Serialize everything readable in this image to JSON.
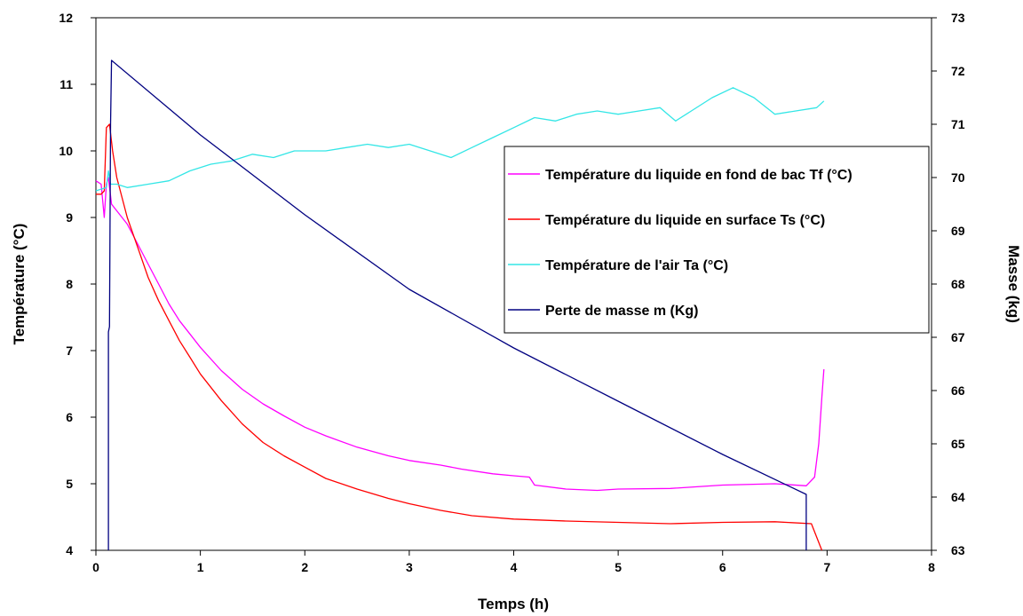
{
  "chart_data": {
    "type": "line",
    "title": "",
    "xlabel": "Temps (h)",
    "ylabel": "Température (°C)",
    "y2label": "Masse (kg)",
    "xlim": [
      0,
      8
    ],
    "ylim": [
      4,
      12
    ],
    "y2lim": [
      63,
      73
    ],
    "xticks": [
      "0",
      "1",
      "2",
      "3",
      "4",
      "5",
      "6",
      "7",
      "8"
    ],
    "yticks": [
      "4",
      "5",
      "6",
      "7",
      "8",
      "9",
      "10",
      "11",
      "12"
    ],
    "y2ticks": [
      "63",
      "64",
      "65",
      "66",
      "67",
      "68",
      "69",
      "70",
      "71",
      "72",
      "73"
    ],
    "grid": false,
    "legend_position": "right",
    "series": [
      {
        "name": "Température du liquide en fond de bac Tf (°C)",
        "color": "#ff00ff",
        "axis": "left",
        "x": [
          0,
          0.05,
          0.08,
          0.1,
          0.12,
          0.15,
          0.2,
          0.3,
          0.4,
          0.5,
          0.6,
          0.7,
          0.8,
          0.9,
          1.0,
          1.2,
          1.4,
          1.6,
          1.8,
          2.0,
          2.2,
          2.5,
          2.8,
          3.0,
          3.3,
          3.5,
          3.8,
          4.0,
          4.15,
          4.2,
          4.5,
          4.8,
          5.0,
          5.5,
          6.0,
          6.5,
          6.8,
          6.88,
          6.92,
          6.95,
          6.97
        ],
        "y": [
          9.55,
          9.5,
          9.0,
          9.5,
          9.6,
          9.2,
          9.1,
          8.9,
          8.6,
          8.3,
          8.0,
          7.7,
          7.45,
          7.25,
          7.05,
          6.7,
          6.42,
          6.2,
          6.02,
          5.85,
          5.72,
          5.55,
          5.42,
          5.35,
          5.28,
          5.22,
          5.15,
          5.12,
          5.1,
          4.98,
          4.92,
          4.9,
          4.92,
          4.93,
          4.98,
          5.0,
          4.97,
          5.1,
          5.6,
          6.3,
          6.72
        ]
      },
      {
        "name": "Température du liquide en surface Ts (°C)",
        "color": "#ff0000",
        "axis": "left",
        "x": [
          0,
          0.05,
          0.08,
          0.1,
          0.13,
          0.16,
          0.2,
          0.25,
          0.3,
          0.4,
          0.5,
          0.6,
          0.7,
          0.8,
          0.9,
          1.0,
          1.2,
          1.4,
          1.6,
          1.8,
          2.0,
          2.2,
          2.5,
          2.8,
          3.0,
          3.3,
          3.6,
          4.0,
          4.5,
          5.0,
          5.5,
          6.0,
          6.5,
          6.85,
          6.9,
          6.95
        ],
        "y": [
          9.35,
          9.35,
          9.4,
          10.35,
          10.4,
          10.0,
          9.6,
          9.3,
          9.0,
          8.55,
          8.1,
          7.75,
          7.45,
          7.15,
          6.9,
          6.65,
          6.25,
          5.9,
          5.62,
          5.42,
          5.25,
          5.08,
          4.92,
          4.78,
          4.7,
          4.6,
          4.52,
          4.47,
          4.44,
          4.42,
          4.4,
          4.42,
          4.43,
          4.4,
          4.2,
          4.0
        ]
      },
      {
        "name": "Température de l'air Ta (°C)",
        "color": "#33e6e6",
        "axis": "left",
        "x": [
          0,
          0.1,
          0.12,
          0.14,
          0.2,
          0.3,
          0.5,
          0.7,
          0.9,
          1.1,
          1.3,
          1.5,
          1.7,
          1.9,
          2.0,
          2.2,
          2.4,
          2.6,
          2.8,
          3.0,
          3.2,
          3.4,
          3.6,
          3.8,
          4.0,
          4.2,
          4.4,
          4.6,
          4.8,
          5.0,
          5.2,
          5.4,
          5.55,
          5.7,
          5.9,
          6.1,
          6.3,
          6.5,
          6.7,
          6.9,
          6.97
        ],
        "y": [
          9.4,
          9.45,
          9.7,
          9.5,
          9.5,
          9.45,
          9.5,
          9.55,
          9.7,
          9.8,
          9.85,
          9.95,
          9.9,
          10.0,
          10.0,
          10.0,
          10.05,
          10.1,
          10.05,
          10.1,
          10.0,
          9.9,
          10.05,
          10.2,
          10.35,
          10.5,
          10.45,
          10.55,
          10.6,
          10.55,
          10.6,
          10.65,
          10.45,
          10.6,
          10.8,
          10.95,
          10.8,
          10.55,
          10.6,
          10.65,
          10.75
        ]
      },
      {
        "name": "Perte de masse m (Kg)",
        "color": "#000080",
        "axis": "right",
        "x": [
          0.12,
          0.12,
          0.13,
          0.14,
          0.15,
          1.0,
          2.0,
          3.0,
          4.0,
          5.0,
          6.0,
          6.8,
          6.8
        ],
        "y": [
          63.0,
          67.1,
          67.2,
          71.0,
          72.2,
          70.8,
          69.3,
          67.9,
          66.8,
          65.8,
          64.8,
          64.05,
          63.0
        ]
      }
    ]
  }
}
